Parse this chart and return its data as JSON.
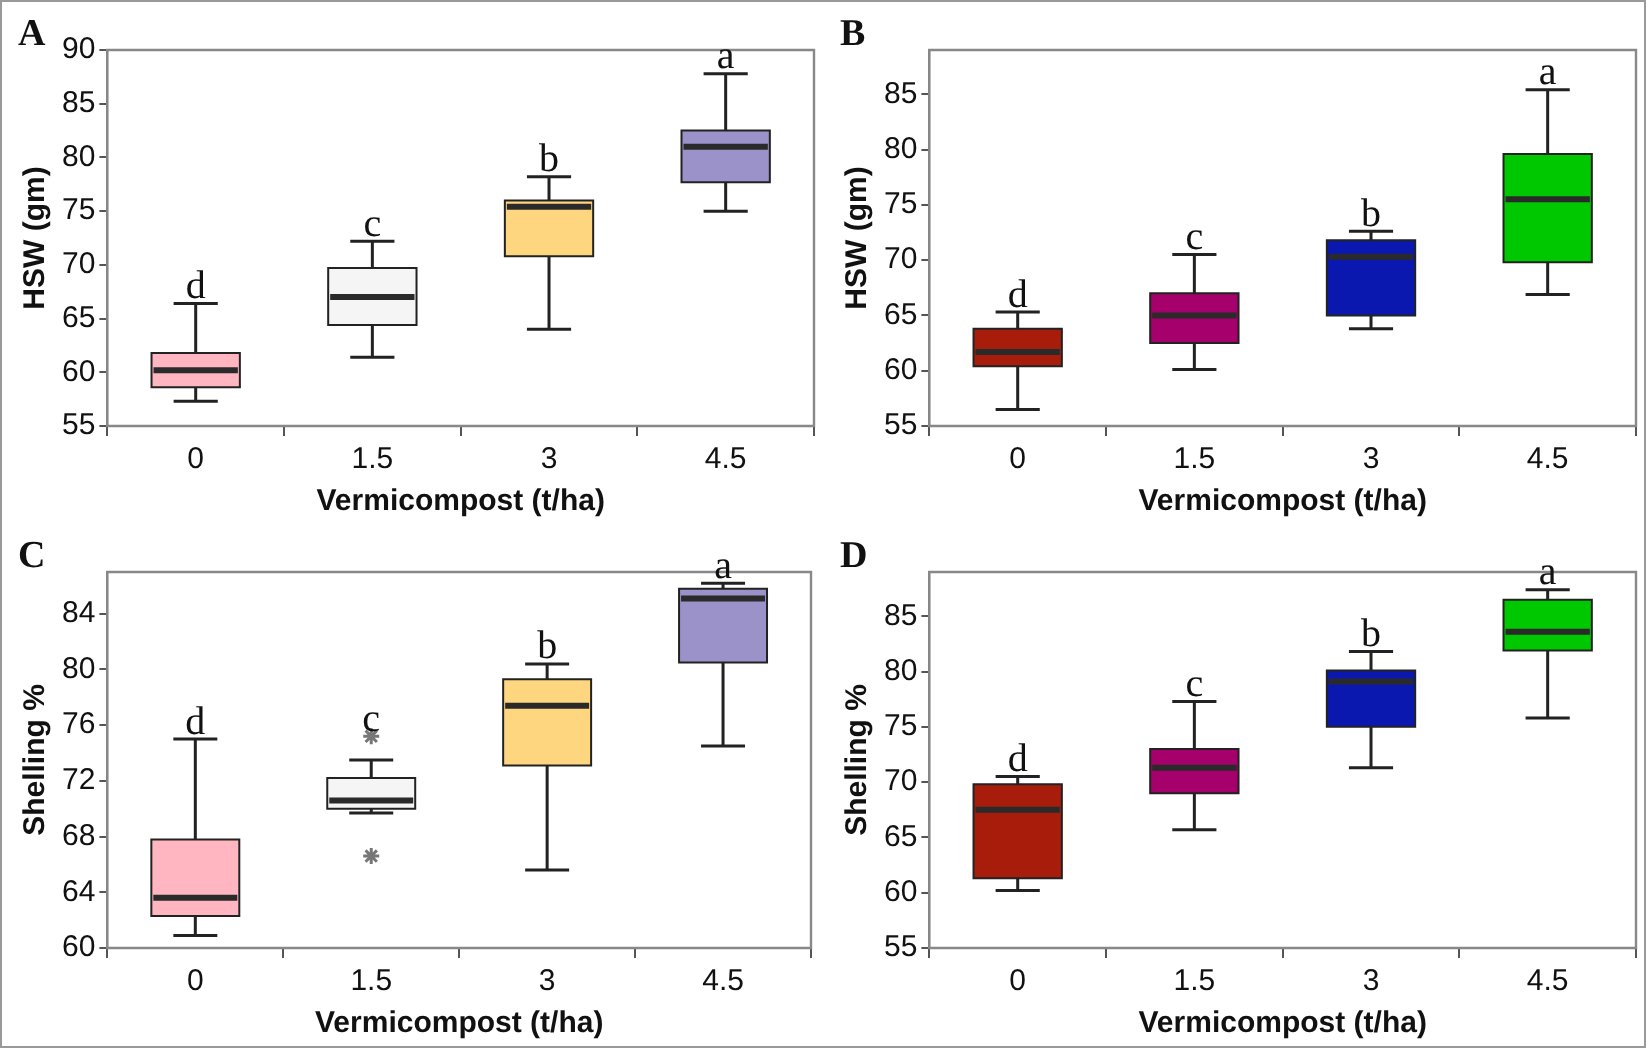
{
  "chart_data": [
    {
      "type": "box",
      "title": "A",
      "xlabel": "Vermicompost (t/ha)",
      "ylabel": "HSW (gm)",
      "categories": [
        "0",
        "1.5",
        "3",
        "4.5"
      ],
      "colors": [
        "#ffb6c1",
        "#f5f5f5",
        "#ffd680",
        "#9a92c8"
      ],
      "boxes": [
        {
          "low": 57.3,
          "q1": 58.6,
          "median": 60.2,
          "q3": 61.8,
          "high": 66.4
        },
        {
          "low": 61.4,
          "q1": 64.4,
          "median": 67,
          "q3": 69.7,
          "high": 72.2
        },
        {
          "low": 64,
          "q1": 70.8,
          "median": 75.4,
          "q3": 76,
          "high": 78.2
        },
        {
          "low": 75,
          "q1": 77.7,
          "median": 81,
          "q3": 82.5,
          "high": 87.8
        }
      ],
      "ylim": [
        55,
        90
      ],
      "yticks": [
        55,
        60,
        65,
        70,
        75,
        80,
        85,
        90
      ],
      "annotations": [
        "d",
        "c",
        "b",
        "a"
      ]
    },
    {
      "type": "box",
      "title": "B",
      "xlabel": "Vermicompost (t/ha)",
      "ylabel": "HSW (gm)",
      "categories": [
        "0",
        "1.5",
        "3",
        "4.5"
      ],
      "colors": [
        "#a81c0c",
        "#a5006b",
        "#0a18b0",
        "#00c800"
      ],
      "boxes": [
        {
          "low": 56.5,
          "q1": 60.4,
          "median": 61.7,
          "q3": 63.8,
          "high": 65.3
        },
        {
          "low": 60.1,
          "q1": 62.5,
          "median": 65,
          "q3": 67,
          "high": 70.5
        },
        {
          "low": 63.8,
          "q1": 65,
          "median": 70.3,
          "q3": 71.8,
          "high": 72.6
        },
        {
          "low": 66.9,
          "q1": 69.8,
          "median": 75.5,
          "q3": 79.6,
          "high": 85.4
        }
      ],
      "ylim": [
        55,
        89
      ],
      "yticks": [
        55,
        60,
        65,
        70,
        75,
        80,
        85
      ],
      "annotations": [
        "d",
        "c",
        "b",
        "a"
      ]
    },
    {
      "type": "box",
      "title": "C",
      "xlabel": "Vermicompost (t/ha)",
      "ylabel": "Shelling %",
      "categories": [
        "0",
        "1.5",
        "3",
        "4.5"
      ],
      "colors": [
        "#ffb6c1",
        "#f5f5f5",
        "#ffd680",
        "#9a92c8"
      ],
      "boxes": [
        {
          "low": 60.9,
          "q1": 62.3,
          "median": 63.6,
          "q3": 67.8,
          "high": 75
        },
        {
          "low": 69.7,
          "q1": 70,
          "median": 70.6,
          "q3": 72.2,
          "high": 73.5,
          "outliers": [
            75.2,
            66.6
          ]
        },
        {
          "low": 65.6,
          "q1": 73.1,
          "median": 77.4,
          "q3": 79.3,
          "high": 80.4
        },
        {
          "low": 74.5,
          "q1": 80.5,
          "median": 85.1,
          "q3": 85.8,
          "high": 86.2
        }
      ],
      "ylim": [
        60,
        87
      ],
      "yticks": [
        60,
        64,
        68,
        72,
        76,
        80,
        84
      ],
      "annotations": [
        "d",
        "c",
        "b",
        "a"
      ]
    },
    {
      "type": "box",
      "title": "D",
      "xlabel": "Vermicompost (t/ha)",
      "ylabel": "Shelling %",
      "categories": [
        "0",
        "1.5",
        "3",
        "4.5"
      ],
      "colors": [
        "#a81c0c",
        "#a5006b",
        "#0a18b0",
        "#00c800"
      ],
      "boxes": [
        {
          "low": 60.2,
          "q1": 61.3,
          "median": 67.5,
          "q3": 69.8,
          "high": 70.5
        },
        {
          "low": 65.7,
          "q1": 69,
          "median": 71.3,
          "q3": 73,
          "high": 77.3
        },
        {
          "low": 71.3,
          "q1": 75,
          "median": 79.1,
          "q3": 80.1,
          "high": 81.8
        },
        {
          "low": 75.8,
          "q1": 81.9,
          "median": 83.6,
          "q3": 86.5,
          "high": 87.4
        }
      ],
      "ylim": [
        55,
        89
      ],
      "yticks": [
        55,
        60,
        65,
        70,
        75,
        80,
        85
      ],
      "annotations": [
        "d",
        "c",
        "b",
        "a"
      ]
    }
  ]
}
